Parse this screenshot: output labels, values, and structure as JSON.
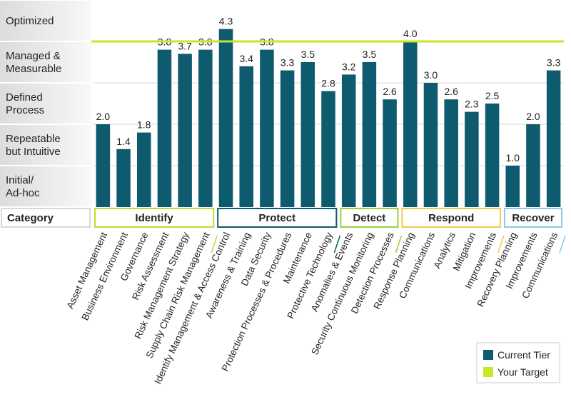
{
  "chart_data": {
    "type": "bar",
    "ylim": [
      0,
      5
    ],
    "tiers": [
      "Initial/\nAd-hoc",
      "Repeatable\nbut Intuitive",
      "Defined\nProcess",
      "Managed &\nMeasurable",
      "Optimized"
    ],
    "target": 4.0,
    "category_header": "Category",
    "groups": [
      {
        "name": "Identify",
        "color": "#c4d930"
      },
      {
        "name": "Protect",
        "color": "#0e5a6e"
      },
      {
        "name": "Detect",
        "color": "#9ccf3f"
      },
      {
        "name": "Respond",
        "color": "#f2c94c"
      },
      {
        "name": "Recover",
        "color": "#8cc9e8"
      }
    ],
    "categories": [
      {
        "label": "Asset Management",
        "value": 2.0,
        "group": 0
      },
      {
        "label": "Business Environment",
        "value": 1.4,
        "group": 0
      },
      {
        "label": "Governance",
        "value": 1.8,
        "group": 0
      },
      {
        "label": "Risk Assessment",
        "value": 3.8,
        "group": 0
      },
      {
        "label": "Risk Management Strategy",
        "value": 3.7,
        "group": 0
      },
      {
        "label": "Supply Chain Risk Management",
        "value": 3.8,
        "group": 0
      },
      {
        "label": "Identify Management & Access Control",
        "value": 4.3,
        "group": 1
      },
      {
        "label": "Awareness & Training",
        "value": 3.4,
        "group": 1
      },
      {
        "label": "Data Security",
        "value": 3.8,
        "group": 1
      },
      {
        "label": "Protection Processes & Procedures",
        "value": 3.3,
        "group": 1
      },
      {
        "label": "Maintenance",
        "value": 3.5,
        "group": 1
      },
      {
        "label": "Protective Technology",
        "value": 2.8,
        "group": 1
      },
      {
        "label": "Anomalies & Events",
        "value": 3.2,
        "group": 2
      },
      {
        "label": "Security Continuous Monitoring",
        "value": 3.5,
        "group": 2
      },
      {
        "label": "Detection Processes",
        "value": 2.6,
        "group": 2
      },
      {
        "label": "Response Planning",
        "value": 4.0,
        "group": 3
      },
      {
        "label": "Communications",
        "value": 3.0,
        "group": 3
      },
      {
        "label": "Analytics",
        "value": 2.6,
        "group": 3
      },
      {
        "label": "Mitigation",
        "value": 2.3,
        "group": 3
      },
      {
        "label": "Improvements",
        "value": 2.5,
        "group": 3
      },
      {
        "label": "Recovery Planning",
        "value": 1.0,
        "group": 4
      },
      {
        "label": "Improvements",
        "value": 2.0,
        "group": 4
      },
      {
        "label": "Communications",
        "value": 3.3,
        "group": 4
      }
    ],
    "legend": [
      {
        "label": "Current Tier",
        "color": "#0e5a6e"
      },
      {
        "label": "Your Target",
        "color": "#c8e62a"
      }
    ],
    "colors": {
      "bar": "#0e5a6e",
      "target_line": "#c8e62a",
      "tier_band_dark": "#e3e3e3",
      "tier_band_light": "#ffffff",
      "gridline": "#d9d9d9"
    }
  }
}
